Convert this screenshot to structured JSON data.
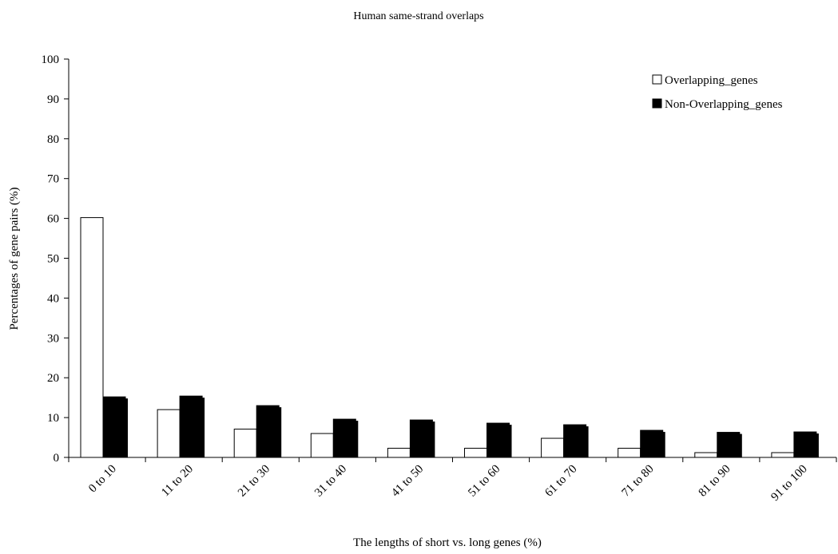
{
  "chart_data": {
    "type": "bar",
    "title": "Human same-strand overlaps",
    "xlabel": "The lengths of short vs. long genes (%)",
    "ylabel": "Percentages of gene pairs (%)",
    "ylim": [
      0,
      100
    ],
    "yticks": [
      0,
      10,
      20,
      30,
      40,
      50,
      60,
      70,
      80,
      90,
      100
    ],
    "grid": false,
    "legend_position": "top-right",
    "categories": [
      "0 to 10",
      "11 to 20",
      "21 to 30",
      "31 to 40",
      "41 to 50",
      "51 to 60",
      "61 to 70",
      "71 to 80",
      "81 to 90",
      "91 to 100"
    ],
    "series": [
      {
        "name": "Overlapping_genes",
        "color": "#ffffff",
        "values": [
          60.2,
          12.0,
          7.1,
          6.0,
          2.3,
          2.3,
          4.8,
          2.3,
          1.2,
          1.2
        ]
      },
      {
        "name": "Non-Overlapping_genes",
        "color": "#000000",
        "values": [
          15.2,
          15.4,
          13.0,
          9.6,
          9.4,
          8.6,
          8.2,
          6.8,
          6.3,
          6.4
        ]
      }
    ]
  }
}
